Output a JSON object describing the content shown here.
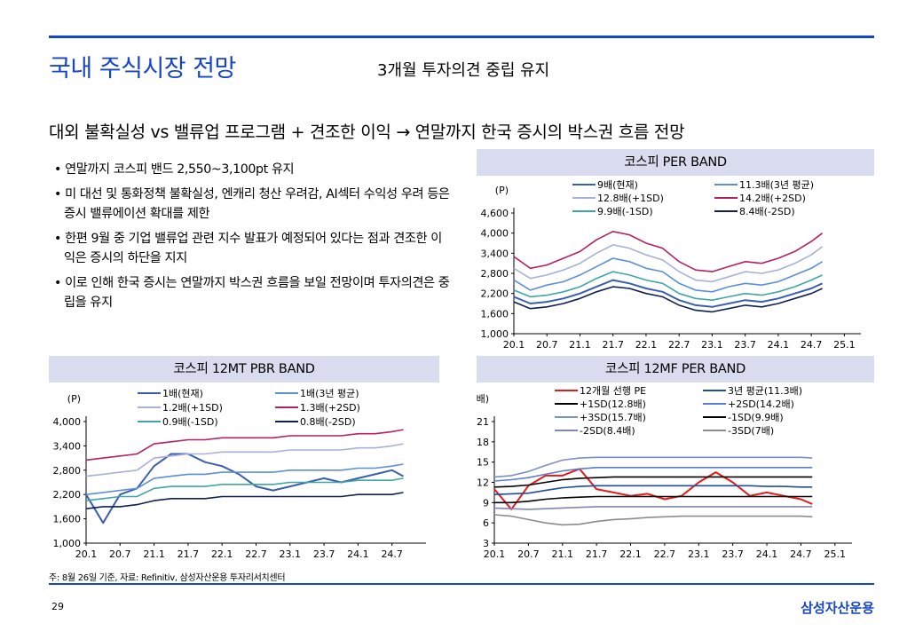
{
  "header": {
    "title": "국내 주식시장 전망",
    "subtitle": "3개월 투자의견 중립 유지"
  },
  "headline": "대외 불확실성 vs 밸류업 프로그램 + 견조한 이익 → 연말까지 한국 증시의 박스권 흐름 전망",
  "bullets": [
    "연말까지 코스피 밴드 2,550~3,100pt  유지",
    "미 대선 및 통화정책 불확실성,  엔캐리 청산 우려감, AI섹터 수익성 우려 등은 증시 밸류에이션 확대를 제한",
    "한편 9월 중 기업 밸류업 관련 지수 발표가 예정되어 있다는 점과 견조한 이익은 증시의 하단을 지지",
    "이로 인해 한국 증시는 연말까지 박스권 흐름을 보일 전망이며 투자의견은 중립을 유지"
  ],
  "footnote": "주: 8월 26일 기준, 자료: Refinitiv, 삼성자산운용 투자리서치센터",
  "footer": {
    "page": "29",
    "brand": "삼성자산운용"
  },
  "chart_data": [
    {
      "type": "line",
      "title": "코스피 PER BAND",
      "ylabel": "(P)",
      "yticks": [
        "1,000",
        "1,600",
        "2,200",
        "2,800",
        "3,400",
        "4,000",
        "4,600"
      ],
      "ylim": [
        1000,
        4600
      ],
      "xticks": [
        "20.1",
        "20.7",
        "21.1",
        "21.7",
        "22.1",
        "22.7",
        "23.1",
        "23.7",
        "24.1",
        "24.7",
        "25.1"
      ],
      "x": [
        "20.1",
        "20.4",
        "20.7",
        "20.10",
        "21.1",
        "21.4",
        "21.7",
        "21.10",
        "22.1",
        "22.4",
        "22.7",
        "22.10",
        "23.1",
        "23.4",
        "23.7",
        "23.10",
        "24.1",
        "24.4",
        "24.7",
        "24.9"
      ],
      "series": [
        {
          "name": "9배(현재)",
          "color": "#3a5fb0",
          "values": [
            2100,
            1900,
            1950,
            2050,
            2200,
            2400,
            2600,
            2500,
            2350,
            2250,
            2000,
            1850,
            1800,
            1900,
            2000,
            1950,
            2050,
            2200,
            2350,
            2500
          ]
        },
        {
          "name": "11.3배(3년 평균)",
          "color": "#5b8fd6",
          "values": [
            2600,
            2300,
            2450,
            2550,
            2750,
            3000,
            3250,
            3150,
            2950,
            2850,
            2500,
            2300,
            2250,
            2400,
            2500,
            2450,
            2550,
            2750,
            2950,
            3150
          ]
        },
        {
          "name": "12.8배(+1SD)",
          "color": "#a7b1d9",
          "values": [
            2950,
            2650,
            2750,
            2900,
            3100,
            3400,
            3650,
            3550,
            3350,
            3200,
            2850,
            2600,
            2550,
            2700,
            2850,
            2800,
            2900,
            3100,
            3350,
            3600
          ]
        },
        {
          "name": "14.2배(+2SD)",
          "color": "#b5225f",
          "values": [
            3300,
            2950,
            3050,
            3250,
            3450,
            3800,
            4050,
            3950,
            3700,
            3550,
            3150,
            2900,
            2850,
            3000,
            3150,
            3100,
            3250,
            3450,
            3750,
            4000
          ]
        },
        {
          "name": "9.9배(-1SD)",
          "color": "#3fa7a3",
          "values": [
            2300,
            2100,
            2150,
            2250,
            2400,
            2650,
            2850,
            2750,
            2600,
            2500,
            2200,
            2050,
            2000,
            2100,
            2200,
            2150,
            2250,
            2400,
            2600,
            2750
          ]
        },
        {
          "name": "8.4배(-2SD)",
          "color": "#102050",
          "values": [
            1950,
            1750,
            1800,
            1900,
            2050,
            2250,
            2400,
            2350,
            2200,
            2100,
            1850,
            1700,
            1650,
            1750,
            1850,
            1800,
            1900,
            2050,
            2200,
            2350
          ]
        }
      ],
      "legend": "top"
    },
    {
      "type": "line",
      "title": "코스피 12MT PBR BAND",
      "ylabel": "(P)",
      "yticks": [
        "1,000",
        "1,600",
        "2,200",
        "2,800",
        "3,400",
        "4,000"
      ],
      "ylim": [
        1000,
        4000
      ],
      "xticks": [
        "20.1",
        "20.7",
        "21.1",
        "21.7",
        "22.1",
        "22.7",
        "23.1",
        "23.7",
        "24.1",
        "24.7"
      ],
      "x": [
        "20.1",
        "20.4",
        "20.7",
        "20.10",
        "21.1",
        "21.4",
        "21.7",
        "21.10",
        "22.1",
        "22.4",
        "22.7",
        "22.10",
        "23.1",
        "23.4",
        "23.7",
        "23.10",
        "24.1",
        "24.4",
        "24.7",
        "24.9"
      ],
      "series": [
        {
          "name": "1배(현재)",
          "color": "#3a5fb0",
          "values": [
            2200,
            1500,
            2200,
            2350,
            2900,
            3200,
            3200,
            3000,
            2900,
            2700,
            2400,
            2300,
            2400,
            2500,
            2600,
            2500,
            2600,
            2700,
            2800,
            2650
          ]
        },
        {
          "name": "1배(3년 평균)",
          "color": "#5b8fd6",
          "values": [
            2200,
            2250,
            2300,
            2350,
            2600,
            2650,
            2700,
            2700,
            2750,
            2750,
            2750,
            2750,
            2800,
            2800,
            2800,
            2800,
            2850,
            2850,
            2900,
            2950
          ]
        },
        {
          "name": "1.2배(+1SD)",
          "color": "#a7b1d9",
          "values": [
            2650,
            2700,
            2750,
            2800,
            3100,
            3150,
            3200,
            3200,
            3250,
            3250,
            3250,
            3250,
            3300,
            3300,
            3300,
            3300,
            3350,
            3350,
            3400,
            3450
          ]
        },
        {
          "name": "1.3배(+2SD)",
          "color": "#b5225f",
          "values": [
            3050,
            3100,
            3150,
            3200,
            3450,
            3500,
            3550,
            3550,
            3600,
            3600,
            3600,
            3600,
            3650,
            3650,
            3650,
            3650,
            3700,
            3700,
            3750,
            3800
          ]
        },
        {
          "name": "0.9배(-1SD)",
          "color": "#3fa7a3",
          "values": [
            2050,
            2100,
            2150,
            2150,
            2350,
            2400,
            2400,
            2400,
            2450,
            2450,
            2450,
            2450,
            2500,
            2500,
            2500,
            2500,
            2550,
            2550,
            2550,
            2600
          ]
        },
        {
          "name": "0.8배(-2SD)",
          "color": "#102050",
          "values": [
            1850,
            1900,
            1900,
            1950,
            2050,
            2100,
            2100,
            2100,
            2150,
            2150,
            2150,
            2150,
            2150,
            2150,
            2150,
            2150,
            2200,
            2200,
            2200,
            2250
          ]
        }
      ],
      "legend": "top"
    },
    {
      "type": "line",
      "title": "코스피 12MF PER BAND",
      "ylabel": "(배)",
      "yticks": [
        "3",
        "6",
        "9",
        "12",
        "15",
        "18",
        "21"
      ],
      "ylim": [
        3,
        21
      ],
      "xticks": [
        "20.1",
        "20.7",
        "21.1",
        "21.7",
        "22.1",
        "22.7",
        "23.1",
        "23.7",
        "24.1",
        "24.7",
        "25.1"
      ],
      "x": [
        "20.1",
        "20.4",
        "20.7",
        "20.10",
        "21.1",
        "21.4",
        "21.7",
        "21.10",
        "22.1",
        "22.4",
        "22.7",
        "22.10",
        "23.1",
        "23.4",
        "23.7",
        "23.10",
        "24.1",
        "24.4",
        "24.7",
        "24.9"
      ],
      "series": [
        {
          "name": "12개월 선행 PE",
          "color": "#e8191a",
          "values": [
            11,
            8,
            11.5,
            13,
            13,
            14,
            11,
            10.5,
            10,
            10.3,
            9.5,
            10,
            12,
            13.5,
            12,
            10,
            10.5,
            10,
            9.5,
            8.8
          ]
        },
        {
          "name": "3년 평균(11.3배)",
          "color": "#1f4e9a",
          "values": [
            10.2,
            10.3,
            10.4,
            10.8,
            11.2,
            11.4,
            11.5,
            11.5,
            11.5,
            11.5,
            11.5,
            11.5,
            11.5,
            11.5,
            11.5,
            11.5,
            11.4,
            11.4,
            11.3,
            11.3
          ]
        },
        {
          "name": "+1SD(12.8배)",
          "color": "#000000",
          "values": [
            11.3,
            11.4,
            11.6,
            12,
            12.4,
            12.6,
            12.7,
            12.8,
            12.8,
            12.8,
            12.8,
            12.8,
            12.8,
            12.8,
            12.8,
            12.8,
            12.8,
            12.8,
            12.8,
            12.8
          ]
        },
        {
          "name": "+2SD(14.2배)",
          "color": "#5b7fcf",
          "values": [
            12.2,
            12.4,
            12.7,
            13.2,
            13.7,
            14,
            14.2,
            14.2,
            14.2,
            14.2,
            14.2,
            14.2,
            14.2,
            14.2,
            14.2,
            14.2,
            14.2,
            14.2,
            14.2,
            14.2
          ]
        },
        {
          "name": "+3SD(15.7배)",
          "color": "#7b8fca",
          "values": [
            12.8,
            13,
            13.6,
            14.5,
            15.3,
            15.6,
            15.7,
            15.7,
            15.7,
            15.7,
            15.7,
            15.7,
            15.7,
            15.7,
            15.7,
            15.7,
            15.7,
            15.7,
            15.7,
            15.6
          ]
        },
        {
          "name": "-1SD(9.9배)",
          "color": "#000000",
          "values": [
            9,
            9,
            9.2,
            9.5,
            9.7,
            9.8,
            9.9,
            9.9,
            9.9,
            9.9,
            9.9,
            9.9,
            9.9,
            9.9,
            9.9,
            9.9,
            9.9,
            9.9,
            9.9,
            9.9
          ]
        },
        {
          "name": "-2SD(8.4배)",
          "color": "#7f88b3",
          "values": [
            8.2,
            8.1,
            8,
            8.1,
            8.2,
            8.3,
            8.4,
            8.4,
            8.4,
            8.4,
            8.4,
            8.4,
            8.4,
            8.4,
            8.4,
            8.4,
            8.4,
            8.4,
            8.4,
            8.4
          ]
        },
        {
          "name": "-3SD(7배)",
          "color": "#8c8c8c",
          "values": [
            7.2,
            7,
            6.5,
            6,
            5.7,
            5.8,
            6.2,
            6.5,
            6.6,
            6.8,
            6.9,
            7,
            7,
            7,
            7,
            7,
            7,
            7,
            7,
            6.9
          ]
        }
      ],
      "legend": "top"
    }
  ]
}
